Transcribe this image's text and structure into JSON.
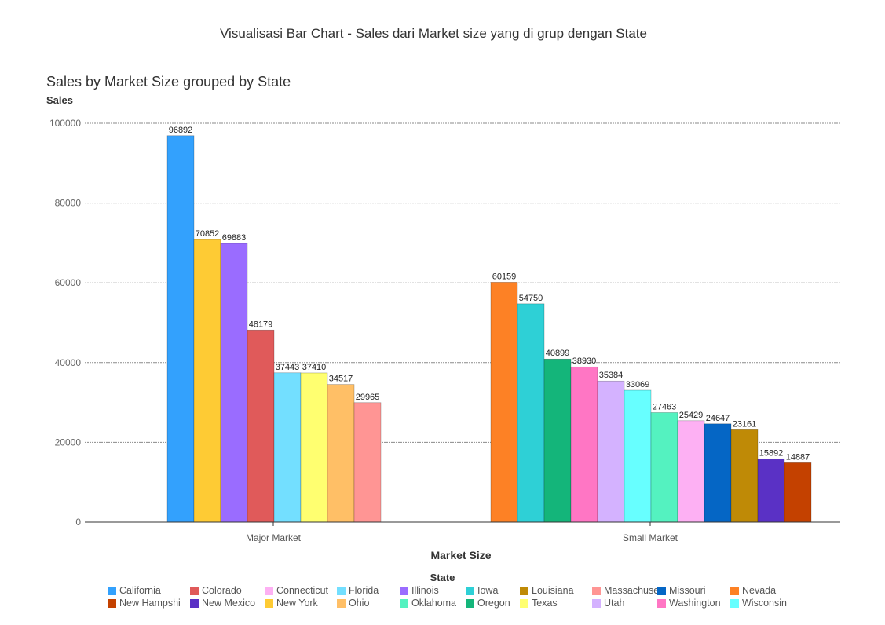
{
  "page_title": "Visualisasi Bar Chart - Sales dari Market size yang di grup dengan State",
  "chart_data": {
    "type": "bar",
    "title": "Sales by Market Size grouped by State",
    "xlabel": "Market Size",
    "ylabel": "Sales",
    "ylim": [
      0,
      100000
    ],
    "yticks": [
      "0",
      "20000",
      "40000",
      "60000",
      "80000",
      "100000"
    ],
    "grid": true,
    "legend_title": "State",
    "legend_position": "bottom",
    "categories": [
      "Major Market",
      "Small Market"
    ],
    "groups": [
      {
        "category": "Major Market",
        "bars": [
          {
            "state": "California",
            "value": 96892,
            "label": "96892"
          },
          {
            "state": "New York",
            "value": 70852,
            "label": "70852"
          },
          {
            "state": "Illinois",
            "value": 69883,
            "label": "69883"
          },
          {
            "state": "Colorado",
            "value": 48179,
            "label": "48179"
          },
          {
            "state": "Florida",
            "value": 37443,
            "label": "37443"
          },
          {
            "state": "Texas",
            "value": 37410,
            "label": "37410"
          },
          {
            "state": "Ohio",
            "value": 34517,
            "label": "34517"
          },
          {
            "state": "Massachuset",
            "value": 29965,
            "label": "29965"
          }
        ]
      },
      {
        "category": "Small Market",
        "bars": [
          {
            "state": "Nevada",
            "value": 60159,
            "label": "60159"
          },
          {
            "state": "Iowa",
            "value": 54750,
            "label": "54750"
          },
          {
            "state": "Oregon",
            "value": 40899,
            "label": "40899"
          },
          {
            "state": "Washington",
            "value": 38930,
            "label": "38930"
          },
          {
            "state": "Utah",
            "value": 35384,
            "label": "35384"
          },
          {
            "state": "Wisconsin",
            "value": 33069,
            "label": "33069"
          },
          {
            "state": "Oklahoma",
            "value": 27463,
            "label": "27463"
          },
          {
            "state": "Connecticut",
            "value": 25429,
            "label": "25429"
          },
          {
            "state": "Missouri",
            "value": 24647,
            "label": "24647"
          },
          {
            "state": "Louisiana",
            "value": 23161,
            "label": "23161"
          },
          {
            "state": "New Mexico",
            "value": 15892,
            "label": "15892"
          },
          {
            "state": "New Hampshi",
            "value": 14887,
            "label": "14887"
          }
        ]
      }
    ],
    "legend": [
      {
        "name": "California",
        "color": "#33A1FD"
      },
      {
        "name": "Colorado",
        "color": "#E05A5A"
      },
      {
        "name": "Connecticut",
        "color": "#FDB0F3"
      },
      {
        "name": "Florida",
        "color": "#73DFFF"
      },
      {
        "name": "Illinois",
        "color": "#9A6CFF"
      },
      {
        "name": "Iowa",
        "color": "#2ED0D6"
      },
      {
        "name": "Louisiana",
        "color": "#BF8A06"
      },
      {
        "name": "Massachuset",
        "color": "#FF9594"
      },
      {
        "name": "Missouri",
        "color": "#0566C5"
      },
      {
        "name": "Nevada",
        "color": "#FD8125"
      },
      {
        "name": "New Hampshi",
        "color": "#C44100"
      },
      {
        "name": "New Mexico",
        "color": "#5A31C5"
      },
      {
        "name": "New York",
        "color": "#FECB34"
      },
      {
        "name": "Ohio",
        "color": "#FFBF66"
      },
      {
        "name": "Oklahoma",
        "color": "#54F2C0"
      },
      {
        "name": "Oregon",
        "color": "#14B57A"
      },
      {
        "name": "Texas",
        "color": "#FFFF70"
      },
      {
        "name": "Utah",
        "color": "#D4B2FF"
      },
      {
        "name": "Washington",
        "color": "#FF76C4"
      },
      {
        "name": "Wisconsin",
        "color": "#67FFFF"
      }
    ]
  }
}
